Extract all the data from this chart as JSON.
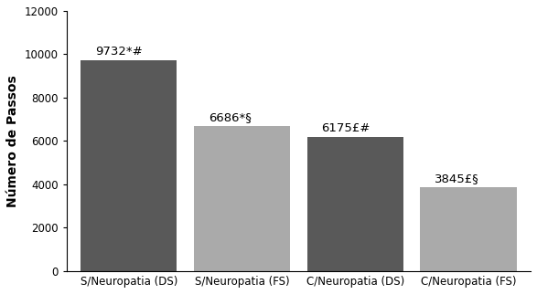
{
  "categories": [
    "S/Neuropatia (DS)",
    "S/Neuropatia (FS)",
    "C/Neuropatia (DS)",
    "C/Neuropatia (FS)"
  ],
  "values": [
    9732,
    6686,
    6175,
    3845
  ],
  "bar_colors": [
    "#595959",
    "#aaaaaa",
    "#595959",
    "#aaaaaa"
  ],
  "labels": [
    "9732*#",
    "6686*§",
    "6175£#",
    "3845£§"
  ],
  "ylabel": "Número de Passos",
  "ylim": [
    0,
    12000
  ],
  "yticks": [
    0,
    2000,
    4000,
    6000,
    8000,
    10000,
    12000
  ],
  "bar_width": 0.85,
  "label_fontsize": 9.5,
  "tick_fontsize": 8.5,
  "ylabel_fontsize": 10,
  "background_color": "#ffffff",
  "edge_color": "none"
}
